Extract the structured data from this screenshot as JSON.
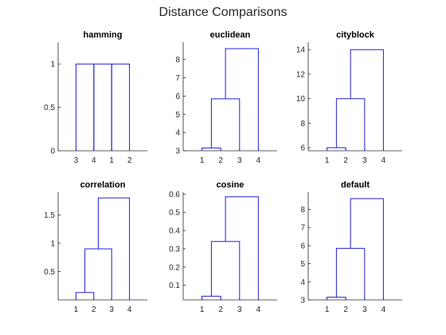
{
  "figure": {
    "title": "Distance Comparisons"
  },
  "style": {
    "line_color": "#1f1fe0",
    "axis_color": "#262626",
    "background": "#ffffff"
  },
  "chart_data": [
    {
      "type": "dendrogram",
      "title": "hamming",
      "leaf_order": [
        "3",
        "4",
        "1",
        "2"
      ],
      "links": [
        {
          "left": 0,
          "right": 1,
          "height": 1
        },
        {
          "left": 1,
          "right": 2,
          "height": 1
        },
        {
          "left": 2,
          "right": 3,
          "height": 1
        }
      ],
      "ylim": [
        0,
        1.25
      ],
      "yticks": [
        0,
        0.5,
        1
      ],
      "ytick_labels": [
        "0",
        "0.5",
        "1"
      ]
    },
    {
      "type": "dendrogram",
      "title": "euclidean",
      "leaf_order": [
        "1",
        "2",
        "3",
        "4"
      ],
      "links": [
        {
          "left": 0,
          "right": 1,
          "height": 3.15
        },
        {
          "left": 0.5,
          "right": 2,
          "height": 5.85
        },
        {
          "left": 1.25,
          "right": 3,
          "height": 8.6
        }
      ],
      "ylim": [
        3,
        8.95
      ],
      "yticks": [
        3,
        4,
        5,
        6,
        7,
        8
      ],
      "ytick_labels": [
        "3",
        "4",
        "5",
        "6",
        "7",
        "8"
      ]
    },
    {
      "type": "dendrogram",
      "title": "cityblock",
      "leaf_order": [
        "1",
        "2",
        "3",
        "4"
      ],
      "links": [
        {
          "left": 0,
          "right": 1,
          "height": 6
        },
        {
          "left": 0.5,
          "right": 2,
          "height": 10
        },
        {
          "left": 1.25,
          "right": 3,
          "height": 14
        }
      ],
      "ylim": [
        5.75,
        14.6
      ],
      "yticks": [
        6,
        8,
        10,
        12,
        14
      ],
      "ytick_labels": [
        "6",
        "8",
        "10",
        "12",
        "14"
      ]
    },
    {
      "type": "dendrogram",
      "title": "correlation",
      "leaf_order": [
        "1",
        "2",
        "3",
        "4"
      ],
      "links": [
        {
          "left": 0,
          "right": 1,
          "height": 0.13
        },
        {
          "left": 0.5,
          "right": 2,
          "height": 0.9
        },
        {
          "left": 1.25,
          "right": 3,
          "height": 1.8
        }
      ],
      "ylim": [
        0,
        1.9
      ],
      "yticks": [
        0.5,
        1,
        1.5
      ],
      "ytick_labels": [
        "0.5",
        "1",
        "1.5"
      ]
    },
    {
      "type": "dendrogram",
      "title": "cosine",
      "leaf_order": [
        "1",
        "2",
        "3",
        "4"
      ],
      "links": [
        {
          "left": 0,
          "right": 1,
          "height": 0.04
        },
        {
          "left": 0.5,
          "right": 2,
          "height": 0.34
        },
        {
          "left": 1.25,
          "right": 3,
          "height": 0.585
        }
      ],
      "ylim": [
        0.02,
        0.61
      ],
      "yticks": [
        0.1,
        0.2,
        0.3,
        0.4,
        0.5,
        0.6
      ],
      "ytick_labels": [
        "0.1",
        "0.2",
        "0.3",
        "0.4",
        "0.5",
        "0.6"
      ]
    },
    {
      "type": "dendrogram",
      "title": "default",
      "leaf_order": [
        "1",
        "2",
        "3",
        "4"
      ],
      "links": [
        {
          "left": 0,
          "right": 1,
          "height": 3.15
        },
        {
          "left": 0.5,
          "right": 2,
          "height": 5.85
        },
        {
          "left": 1.25,
          "right": 3,
          "height": 8.6
        }
      ],
      "ylim": [
        3,
        8.95
      ],
      "yticks": [
        3,
        4,
        5,
        6,
        7,
        8
      ],
      "ytick_labels": [
        "3",
        "4",
        "5",
        "6",
        "7",
        "8"
      ]
    }
  ]
}
